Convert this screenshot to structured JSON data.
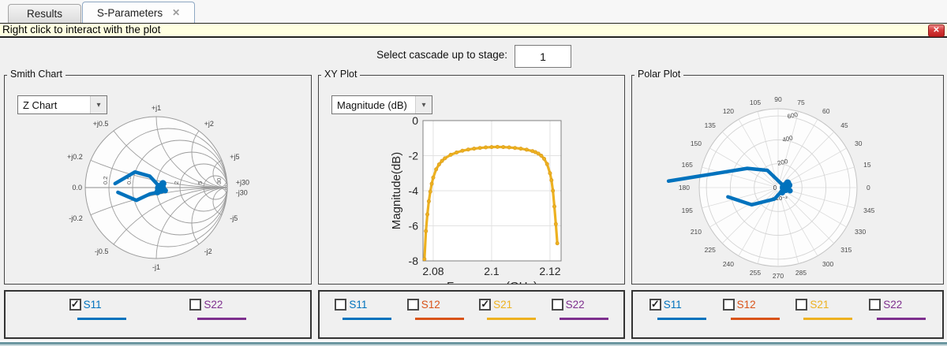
{
  "tabs": [
    {
      "label": "Results",
      "active": false
    },
    {
      "label": "S-Parameters",
      "active": true,
      "close_symbol": "✕"
    }
  ],
  "banner": {
    "text": "Right click to interact with the plot",
    "close_symbol": "✕"
  },
  "cascade": {
    "label": "Select cascade up to stage:",
    "value": "1"
  },
  "panels": {
    "smith": {
      "title": "Smith Chart",
      "dropdown_value": "Z Chart"
    },
    "xy": {
      "title": "XY Plot",
      "dropdown_value": "Magnitude (dB)"
    },
    "polar": {
      "title": "Polar Plot"
    }
  },
  "legends": {
    "smith": [
      {
        "label": "S11",
        "checked": true,
        "color": "#0072BD"
      },
      {
        "label": "S22",
        "checked": false,
        "color": "#7E2F8E"
      }
    ],
    "xy": [
      {
        "label": "S11",
        "checked": false,
        "color": "#0072BD"
      },
      {
        "label": "S12",
        "checked": false,
        "color": "#D95319"
      },
      {
        "label": "S21",
        "checked": true,
        "color": "#EDB120"
      },
      {
        "label": "S22",
        "checked": false,
        "color": "#7E2F8E"
      }
    ],
    "polar": [
      {
        "label": "S11",
        "checked": true,
        "color": "#0072BD"
      },
      {
        "label": "S12",
        "checked": false,
        "color": "#D95319"
      },
      {
        "label": "S21",
        "checked": false,
        "color": "#EDB120"
      },
      {
        "label": "S22",
        "checked": false,
        "color": "#7E2F8E"
      }
    ]
  },
  "chart_data": [
    {
      "id": "smith",
      "type": "smith",
      "mode": "Z Chart",
      "selected_trace": "S11",
      "axis_origin_label": "0.0",
      "resistance_values": [
        0.2,
        0.5,
        1,
        2,
        5,
        30
      ],
      "resistance_inner_labels": [
        "0.2",
        "0.5",
        "2",
        "5",
        "30"
      ],
      "resistance_inner_values": [
        0.2,
        0.5,
        2,
        5,
        30
      ],
      "reactance_values": [
        0.2,
        0.5,
        1,
        2,
        5,
        30,
        -0.2,
        -0.5,
        -1,
        -2,
        -5,
        -30
      ],
      "reactance_labels": [
        "+j0.2",
        "+j0.5",
        "+j1",
        "+j2",
        "+j5",
        "+j30",
        "-j0.2",
        "-j0.5",
        "-j1",
        "-j2",
        "-j5",
        "-j30"
      ],
      "trace": {
        "name": "S11",
        "color": "#0072BD",
        "branch1_gamma": [
          [
            -0.58,
            0.056
          ],
          [
            -0.3,
            0.22
          ],
          [
            -0.09,
            0.16
          ],
          [
            0.03,
            0.03
          ]
        ],
        "branch2_gamma": [
          [
            -0.54,
            -0.067
          ],
          [
            -0.28,
            -0.18
          ],
          [
            -0.09,
            -0.09
          ],
          [
            0.02,
            -0.067
          ]
        ],
        "cluster_gamma": [
          0.06,
          -0.01
        ]
      }
    },
    {
      "id": "xy",
      "type": "line",
      "xlabel": "Frequency (GHz)",
      "ylabel": "Magnitude(dB)",
      "xlim": [
        2.0765,
        2.1238
      ],
      "ylim": [
        -8,
        0
      ],
      "xticks": [
        "2.08",
        "2.1",
        "2.12"
      ],
      "xtick_values": [
        2.08,
        2.1,
        2.12
      ],
      "yticks": [
        "0",
        "-2",
        "-4",
        "-6",
        "-8"
      ],
      "ytick_values": [
        0,
        -2,
        -4,
        -6,
        -8
      ],
      "grid": true,
      "series": [
        {
          "name": "S21",
          "color": "#EDB120",
          "marker": true,
          "points": [
            [
              2.077,
              -7.9
            ],
            [
              2.0775,
              -6.3
            ],
            [
              2.078,
              -5.35
            ],
            [
              2.0785,
              -4.6
            ],
            [
              2.079,
              -4.05
            ],
            [
              2.0795,
              -3.6
            ],
            [
              2.08,
              -3.25
            ],
            [
              2.081,
              -2.78
            ],
            [
              2.082,
              -2.5
            ],
            [
              2.083,
              -2.3
            ],
            [
              2.084,
              -2.15
            ],
            [
              2.086,
              -1.95
            ],
            [
              2.088,
              -1.82
            ],
            [
              2.09,
              -1.72
            ],
            [
              2.092,
              -1.65
            ],
            [
              2.094,
              -1.6
            ],
            [
              2.096,
              -1.56
            ],
            [
              2.098,
              -1.53
            ],
            [
              2.1,
              -1.51
            ],
            [
              2.102,
              -1.5
            ],
            [
              2.104,
              -1.51
            ],
            [
              2.106,
              -1.53
            ],
            [
              2.108,
              -1.56
            ],
            [
              2.11,
              -1.6
            ],
            [
              2.112,
              -1.66
            ],
            [
              2.114,
              -1.74
            ],
            [
              2.115,
              -1.8
            ],
            [
              2.116,
              -1.88
            ],
            [
              2.117,
              -2.0
            ],
            [
              2.118,
              -2.18
            ],
            [
              2.119,
              -2.48
            ],
            [
              2.12,
              -3.0
            ],
            [
              2.1205,
              -3.4
            ],
            [
              2.121,
              -4.0
            ],
            [
              2.1215,
              -4.9
            ],
            [
              2.122,
              -5.9
            ],
            [
              2.1225,
              -7.0
            ]
          ]
        }
      ]
    },
    {
      "id": "polar",
      "type": "polar",
      "selected_trace": "S11",
      "rticks": [
        "200",
        "400",
        "600"
      ],
      "rtick_values": [
        200,
        400,
        600
      ],
      "rlim": [
        0,
        660
      ],
      "theta_tick_values": [
        0,
        15,
        30,
        45,
        60,
        75,
        90,
        105,
        120,
        135,
        150,
        165,
        180,
        195,
        210,
        225,
        240,
        255,
        270,
        285,
        300,
        315,
        330,
        345
      ],
      "origin_label": "0",
      "units_exponent": "×10⁻³",
      "trace": {
        "name": "S11",
        "color": "#0072BD",
        "branch1_deg_milli": [
          [
            176.6,
            918
          ],
          [
            148,
            304
          ],
          [
            122,
            170
          ],
          [
            45,
            42
          ],
          [
            0,
            60
          ]
        ],
        "branch2_deg_milli": [
          [
            190.5,
            427
          ],
          [
            213,
            264
          ],
          [
            252,
            101
          ],
          [
            337,
            45
          ],
          [
            0,
            60
          ]
        ],
        "cluster_deg_milli": [
          0,
          60
        ]
      }
    }
  ]
}
